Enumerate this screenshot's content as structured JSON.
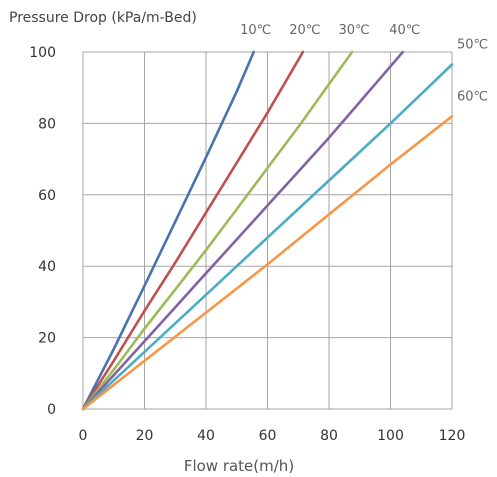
{
  "chart_data": {
    "type": "line",
    "title": "",
    "xlabel": "Flow rate(m/h)",
    "ylabel": "Pressure Drop (kPa/m-Bed)",
    "xlim": [
      0,
      120
    ],
    "ylim": [
      0,
      100
    ],
    "x_ticks": [
      0,
      20,
      40,
      60,
      80,
      100,
      120
    ],
    "y_ticks": [
      0,
      20,
      40,
      60,
      80,
      100
    ],
    "grid": true,
    "series": [
      {
        "name": "10℃",
        "color": "#4a72b0",
        "x": [
          0,
          10,
          20,
          30,
          40,
          50,
          55.5
        ],
        "y": [
          0,
          16.8,
          34.5,
          52.5,
          70.5,
          89,
          100
        ]
      },
      {
        "name": "20℃",
        "color": "#c0504d",
        "x": [
          0,
          10,
          20,
          30,
          40,
          50,
          60,
          71.5
        ],
        "y": [
          0,
          13.5,
          27.5,
          41,
          55,
          69,
          83,
          100
        ]
      },
      {
        "name": "30℃",
        "color": "#9bbb59",
        "x": [
          0,
          10,
          20,
          30,
          40,
          50,
          60,
          70,
          80,
          87.5
        ],
        "y": [
          0,
          11,
          22.5,
          33.5,
          44.5,
          56,
          67.5,
          79,
          91,
          100
        ]
      },
      {
        "name": "40℃",
        "color": "#8064a2",
        "x": [
          0,
          10,
          20,
          30,
          40,
          50,
          60,
          70,
          80,
          90,
          104
        ],
        "y": [
          0,
          9.5,
          19,
          28.5,
          38,
          47.5,
          57,
          66.5,
          76,
          86,
          100
        ]
      },
      {
        "name": "50℃",
        "color": "#4bacc6",
        "x": [
          0,
          20,
          40,
          60,
          80,
          100,
          120
        ],
        "y": [
          0,
          16,
          32,
          48,
          64,
          80,
          96.5
        ]
      },
      {
        "name": "60℃",
        "color": "#f79646",
        "x": [
          0,
          20,
          40,
          60,
          80,
          100,
          120
        ],
        "y": [
          0,
          13.5,
          27,
          40.5,
          54.5,
          68.5,
          82
        ]
      }
    ]
  }
}
